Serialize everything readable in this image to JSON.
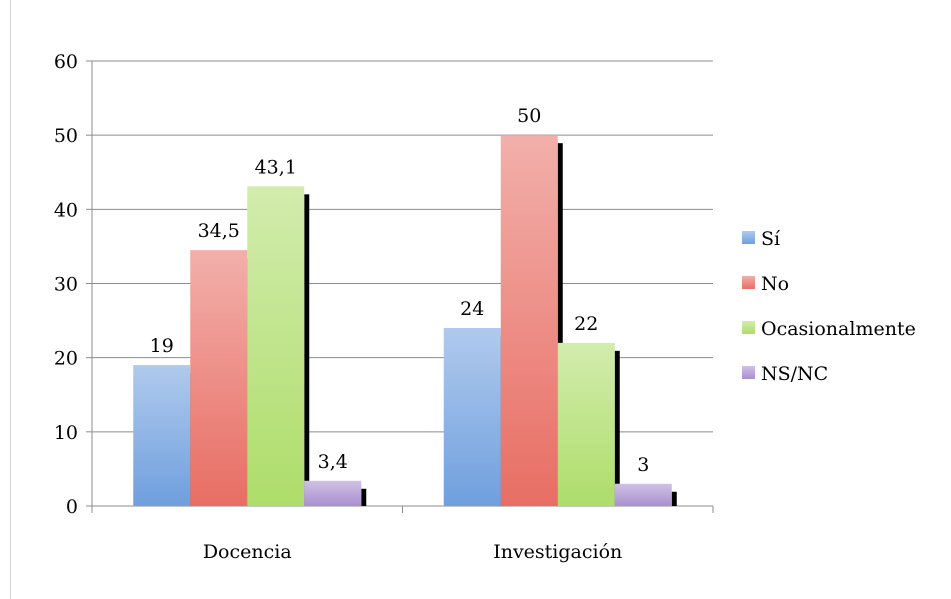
{
  "chart_data": {
    "type": "bar",
    "categories": [
      "Docencia",
      "Investigación"
    ],
    "series": [
      {
        "name": "Sí",
        "values": [
          19,
          24
        ],
        "color": "#6f9fde"
      },
      {
        "name": "No",
        "values": [
          34.5,
          50
        ],
        "color": "#e86e64"
      },
      {
        "name": "Ocasionalmente",
        "values": [
          43.1,
          22
        ],
        "color": "#aedd6a"
      },
      {
        "name": "NS/NC",
        "values": [
          3.4,
          3
        ],
        "color": "#a98fcf"
      }
    ],
    "data_labels": [
      [
        "19",
        "24"
      ],
      [
        "34,5",
        "50"
      ],
      [
        "43,1",
        "22"
      ],
      [
        "3,4",
        "3"
      ]
    ],
    "y_ticks": [
      0,
      10,
      20,
      30,
      40,
      50,
      60
    ],
    "ylim": [
      0,
      60
    ],
    "grid": true,
    "legend_position": "right",
    "title": "",
    "xlabel": "",
    "ylabel": ""
  }
}
